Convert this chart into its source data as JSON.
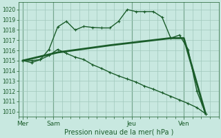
{
  "bg_color": "#c8e8e0",
  "grid_color": "#a0c8bc",
  "line_color": "#1a5c2a",
  "line_color2": "#2a6e3a",
  "ylim": [
    1009.5,
    1020.7
  ],
  "ylabel_ticks": [
    1010,
    1011,
    1012,
    1013,
    1014,
    1015,
    1016,
    1017,
    1018,
    1019,
    1020
  ],
  "xlabel": "Pression niveau de la mer( hPa )",
  "day_labels": [
    "Mer",
    "Sam",
    "Jeu",
    "Ven"
  ],
  "day_positions": [
    0.5,
    4.0,
    13.0,
    19.0
  ],
  "vline_positions": [
    0.5,
    4.0,
    13.0,
    19.0
  ],
  "xlim": [
    0,
    23
  ],
  "n_xticks": 24,
  "line1_x": [
    0.5,
    1.5,
    2.5,
    3.5,
    4.5,
    5.5,
    6.5,
    7.5,
    8.5,
    9.5,
    10.5,
    11.5,
    12.5,
    13.5,
    14.5,
    15.5,
    16.5,
    17.5,
    18.5,
    19.5,
    20.5,
    21.5
  ],
  "line1_y": [
    1015.0,
    1014.8,
    1015.1,
    1016.1,
    1018.3,
    1018.85,
    1018.0,
    1018.35,
    1018.25,
    1018.2,
    1018.2,
    1018.85,
    1020.0,
    1019.8,
    1019.8,
    1019.8,
    1019.25,
    1017.2,
    1017.5,
    1016.1,
    1012.0,
    1009.8
  ],
  "line2_x": [
    0.5,
    4.5,
    10.5,
    17.5,
    19.0,
    21.5
  ],
  "line2_y": [
    1015.0,
    1015.8,
    1016.5,
    1017.2,
    1017.2,
    1009.8
  ],
  "line3_x": [
    0.5,
    1.5,
    2.5,
    3.5,
    4.5,
    5.5,
    6.5,
    7.5,
    8.5,
    9.5,
    10.5,
    11.5,
    12.5,
    13.5,
    14.5,
    15.5,
    16.5,
    17.5,
    18.5,
    19.5,
    20.5,
    21.5
  ],
  "line3_y": [
    1015.0,
    1015.0,
    1015.1,
    1015.5,
    1016.1,
    1015.7,
    1015.35,
    1015.1,
    1014.6,
    1014.25,
    1013.85,
    1013.5,
    1013.2,
    1012.9,
    1012.5,
    1012.2,
    1011.85,
    1011.5,
    1011.15,
    1010.8,
    1010.4,
    1009.8
  ]
}
